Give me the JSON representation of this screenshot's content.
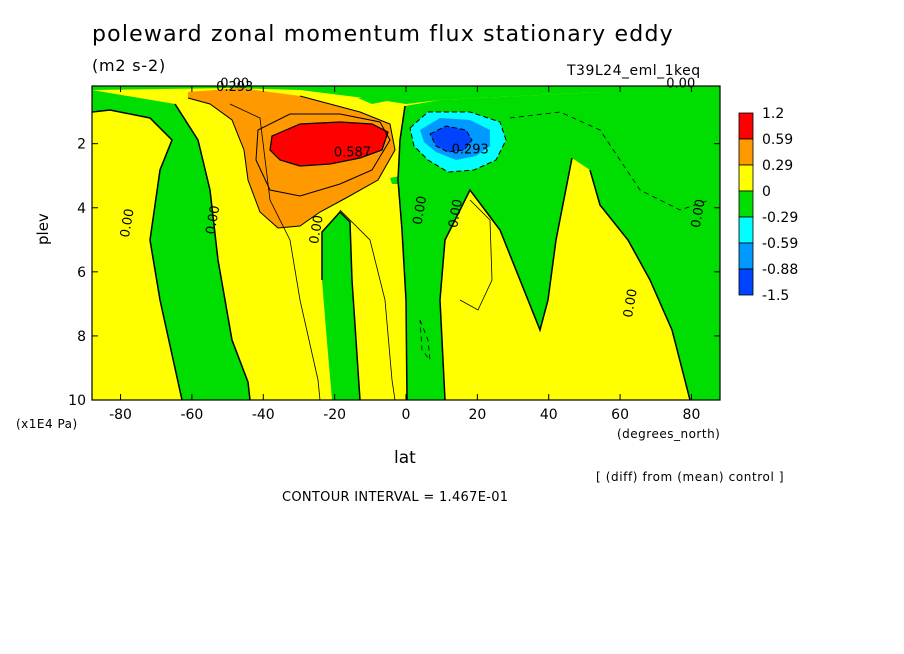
{
  "chart_data": {
    "type": "contour",
    "title": "poleward zonal momentum flux stationary eddy",
    "units": "(m2 s-2)",
    "experiment": "T39L24_eml_1keq",
    "xlabel": "lat",
    "x_units": "(degrees_north)",
    "ylabel": "plev",
    "y_units": "(x1E4 Pa)",
    "xlim": [
      -88,
      88
    ],
    "ylim": [
      10,
      0.2
    ],
    "x_ticks": [
      -80,
      -60,
      -40,
      -20,
      0,
      20,
      40,
      60,
      80
    ],
    "x_tick_labels": [
      "-80",
      "-60",
      "-40",
      "-20",
      "0",
      "20",
      "40",
      "60",
      "80"
    ],
    "y_ticks": [
      2,
      4,
      6,
      8,
      10
    ],
    "y_tick_labels": [
      "2",
      "4",
      "6",
      "8",
      "10"
    ],
    "legend": {
      "placement": "right",
      "levels": [
        "1.2",
        "0.59",
        "0.29",
        "0",
        "-0.29",
        "-0.59",
        "-0.88",
        "-1.5"
      ],
      "colors": [
        "#ff0000",
        "#ff9900",
        "#ffff00",
        "#00dd00",
        "#00ffff",
        "#0099ff",
        "#0044ff"
      ]
    },
    "contour_labels": [
      {
        "text": "0.293",
        "lat": -48,
        "plev": 0.35
      },
      {
        "text": "0.00",
        "lat": -48,
        "plev": 0.25
      },
      {
        "text": "0.587",
        "lat": -15,
        "plev": 2.4
      },
      {
        "text": "0.293",
        "lat": 18,
        "plev": 2.3
      },
      {
        "text": "0.00",
        "lat": 77,
        "plev": 0.25
      },
      {
        "text": "0.00",
        "lat": -77,
        "plev": 4.5
      },
      {
        "text": "0.00",
        "lat": -53,
        "plev": 4.4
      },
      {
        "text": "0.00",
        "lat": -24,
        "plev": 4.7
      },
      {
        "text": "0.00",
        "lat": 5,
        "plev": 4.1
      },
      {
        "text": "0.00",
        "lat": 15,
        "plev": 4.2
      },
      {
        "text": "0.00",
        "lat": 64,
        "plev": 7.0
      },
      {
        "text": "0.00",
        "lat": 83,
        "plev": 4.2
      }
    ],
    "contour_interval": "CONTOUR INTERVAL = 1.467E-01",
    "note": "[ (diff) from (mean) control ]"
  },
  "colors": {
    "positive_high": "#ff0000",
    "positive_mid": "#ff9900",
    "positive_low": "#ffff00",
    "negative_low": "#00dd00",
    "negative_mid": "#00ffff",
    "negative_high": "#0099ff",
    "negative_max": "#0044ff"
  }
}
